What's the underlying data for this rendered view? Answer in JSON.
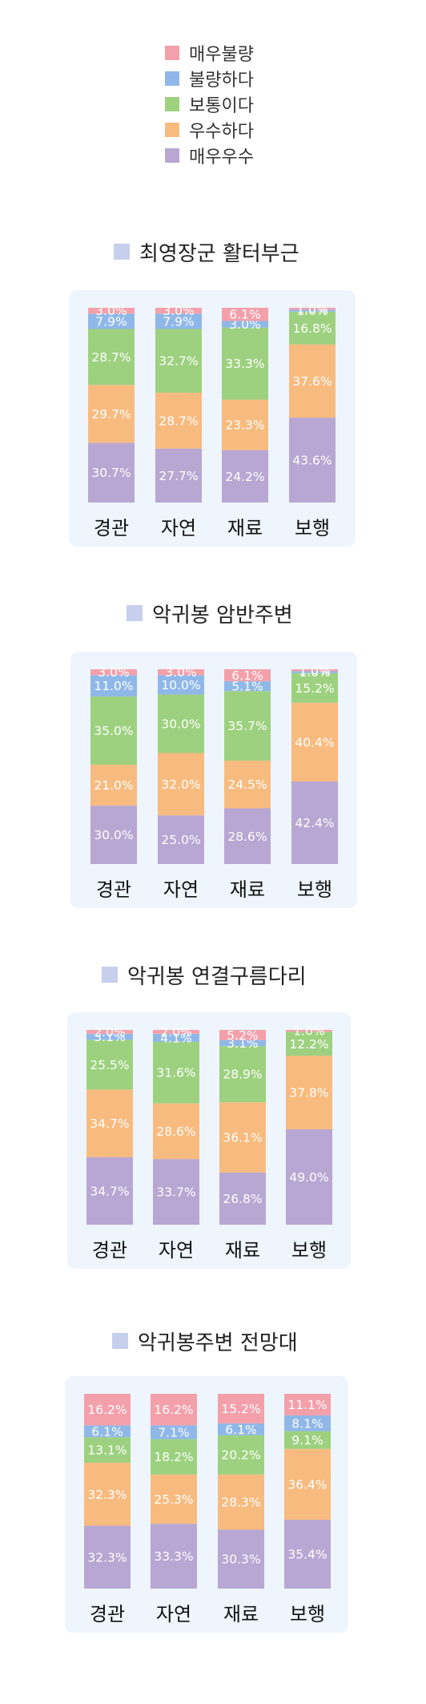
{
  "legend": [
    {
      "name": "매우불량",
      "color": "#f4a0aa"
    },
    {
      "name": "불량하다",
      "color": "#8fb8e8"
    },
    {
      "name": "보통이다",
      "color": "#9dd17f"
    },
    {
      "name": "우수하다",
      "color": "#f8bb7f"
    },
    {
      "name": "매우우수",
      "color": "#b8a7d2"
    }
  ],
  "title_marker_color": "#c6cfec",
  "chart_data": [
    {
      "type": "bar",
      "stacked": true,
      "title": "최영장군 활터부근",
      "categories": [
        "경관",
        "자연",
        "재료",
        "보행"
      ],
      "series": [
        {
          "name": "매우우수",
          "values": [
            30.7,
            27.7,
            24.2,
            43.6
          ]
        },
        {
          "name": "우수하다",
          "values": [
            29.7,
            28.7,
            23.3,
            37.6
          ]
        },
        {
          "name": "보통이다",
          "values": [
            28.7,
            32.7,
            33.3,
            16.8
          ]
        },
        {
          "name": "불량하다",
          "values": [
            7.9,
            7.9,
            3.0,
            1.0
          ]
        },
        {
          "name": "매우불량",
          "values": [
            3.0,
            3.0,
            6.1,
            1.0
          ]
        }
      ],
      "ylim": [
        0,
        100
      ]
    },
    {
      "type": "bar",
      "stacked": true,
      "title": "악귀봉 암반주변",
      "categories": [
        "경관",
        "자연",
        "재료",
        "보행"
      ],
      "series": [
        {
          "name": "매우우수",
          "values": [
            30.0,
            25.0,
            28.6,
            42.4
          ]
        },
        {
          "name": "우수하다",
          "values": [
            21.0,
            32.0,
            24.5,
            40.4
          ]
        },
        {
          "name": "보통이다",
          "values": [
            35.0,
            30.0,
            35.7,
            15.2
          ]
        },
        {
          "name": "불량하다",
          "values": [
            11.0,
            10.0,
            5.1,
            1.0
          ]
        },
        {
          "name": "매우불량",
          "values": [
            3.0,
            3.0,
            6.1,
            1.0
          ]
        }
      ],
      "ylim": [
        0,
        100
      ]
    },
    {
      "type": "bar",
      "stacked": true,
      "title": "악귀봉 연결구름다리",
      "categories": [
        "경관",
        "자연",
        "재료",
        "보행"
      ],
      "series": [
        {
          "name": "매우우수",
          "values": [
            34.7,
            33.7,
            26.8,
            49.0
          ]
        },
        {
          "name": "우수하다",
          "values": [
            34.7,
            28.6,
            36.1,
            37.8
          ]
        },
        {
          "name": "보통이다",
          "values": [
            25.5,
            31.6,
            28.9,
            12.2
          ]
        },
        {
          "name": "불량하다",
          "values": [
            3.1,
            4.1,
            3.1,
            0
          ]
        },
        {
          "name": "매우불량",
          "values": [
            2.0,
            2.0,
            5.2,
            1.0
          ]
        }
      ],
      "ylim": [
        0,
        100
      ]
    },
    {
      "type": "bar",
      "stacked": true,
      "title": "악귀봉주변 전망대",
      "categories": [
        "경관",
        "자연",
        "재료",
        "보행"
      ],
      "series": [
        {
          "name": "매우우수",
          "values": [
            32.3,
            33.3,
            30.3,
            35.4
          ]
        },
        {
          "name": "우수하다",
          "values": [
            32.3,
            25.3,
            28.3,
            36.4
          ]
        },
        {
          "name": "보통이다",
          "values": [
            13.1,
            18.2,
            20.2,
            9.1
          ]
        },
        {
          "name": "불량하다",
          "values": [
            6.1,
            7.1,
            6.1,
            8.1
          ]
        },
        {
          "name": "매우불량",
          "values": [
            16.2,
            16.2,
            15.2,
            11.1
          ]
        }
      ],
      "ylim": [
        0,
        100
      ]
    }
  ]
}
